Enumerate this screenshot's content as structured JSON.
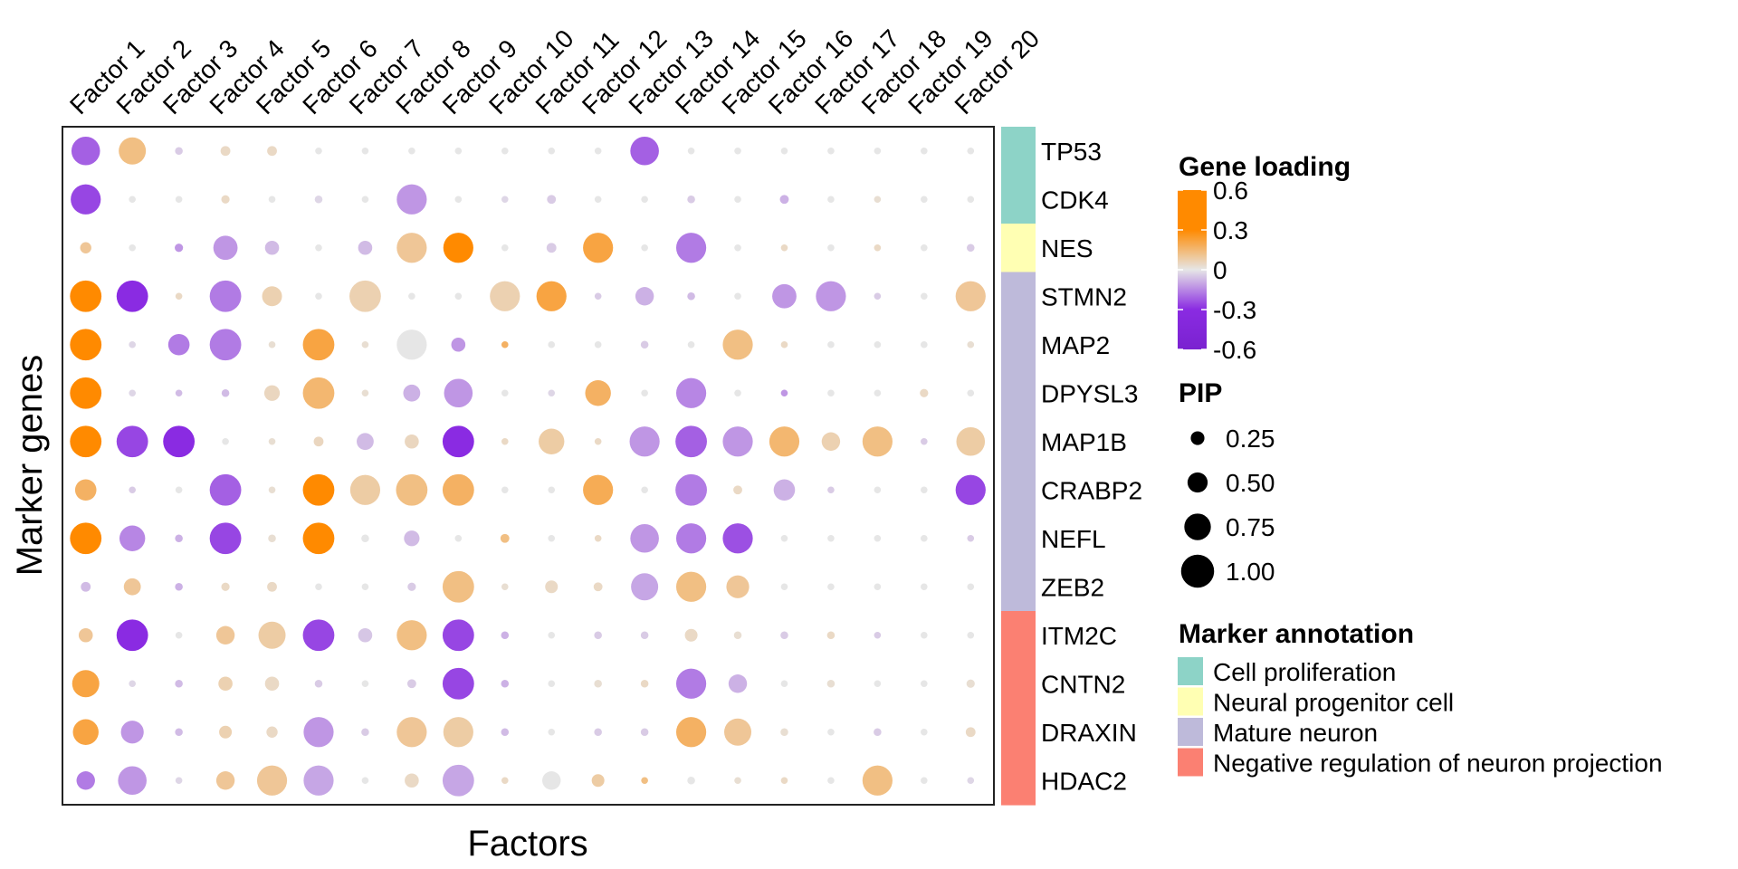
{
  "chart_data": {
    "type": "scatter",
    "subtype": "dot-heatmap",
    "xlabel": "Factors",
    "ylabel": "Marker genes",
    "x_categories": [
      "Factor 1",
      "Factor 2",
      "Factor 3",
      "Factor 4",
      "Factor 5",
      "Factor 6",
      "Factor 7",
      "Factor 8",
      "Factor 9",
      "Factor 10",
      "Factor 11",
      "Factor 12",
      "Factor 13",
      "Factor 14",
      "Factor 15",
      "Factor 16",
      "Factor 17",
      "Factor 18",
      "Factor 19",
      "Factor 20"
    ],
    "y_categories": [
      "TP53",
      "CDK4",
      "NES",
      "STMN2",
      "MAP2",
      "DPYSL3",
      "MAP1B",
      "CRABP2",
      "NEFL",
      "ZEB2",
      "ITM2C",
      "CNTN2",
      "DRAXIN",
      "HDAC2"
    ],
    "annotation": {
      "TP53": "Cell proliferation",
      "CDK4": "Cell proliferation",
      "NES": "Neural progenitor cell",
      "STMN2": "Mature neuron",
      "MAP2": "Mature neuron",
      "DPYSL3": "Mature neuron",
      "MAP1B": "Mature neuron",
      "CRABP2": "Mature neuron",
      "NEFL": "Mature neuron",
      "ZEB2": "Mature neuron",
      "ITM2C": "Negative regulation of neuron projection",
      "CNTN2": "Negative regulation of neuron projection",
      "DRAXIN": "Negative regulation of neuron projection",
      "HDAC2": "Negative regulation of neuron projection"
    },
    "loading": [
      [
        -0.25,
        0.15,
        -0.05,
        0.05,
        0.05,
        0.0,
        0.0,
        0.0,
        0.0,
        0.0,
        0.0,
        0.0,
        -0.25,
        0.0,
        0.0,
        0.0,
        0.0,
        0.0,
        0.0,
        0.0
      ],
      [
        -0.3,
        0.0,
        0.0,
        0.05,
        0.0,
        -0.03,
        0.0,
        -0.15,
        0.0,
        -0.03,
        -0.05,
        0.0,
        0.0,
        -0.05,
        0.0,
        -0.1,
        0.0,
        0.03,
        0.0,
        0.0
      ],
      [
        0.12,
        0.0,
        -0.15,
        -0.15,
        -0.08,
        0.0,
        -0.08,
        0.12,
        0.35,
        0.0,
        -0.05,
        0.25,
        0.0,
        -0.2,
        0.0,
        0.05,
        0.0,
        0.05,
        0.0,
        -0.05
      ],
      [
        0.55,
        -0.55,
        0.05,
        -0.2,
        0.08,
        0.0,
        0.08,
        0.0,
        0.0,
        0.08,
        0.25,
        -0.05,
        -0.1,
        -0.08,
        0.0,
        -0.15,
        -0.15,
        -0.05,
        0.0,
        0.12
      ],
      [
        0.55,
        -0.03,
        -0.2,
        -0.2,
        0.03,
        0.25,
        0.03,
        0.0,
        -0.15,
        0.2,
        0.0,
        0.0,
        -0.05,
        0.0,
        0.15,
        0.05,
        0.0,
        0.0,
        0.0,
        0.03
      ],
      [
        0.35,
        -0.03,
        -0.08,
        -0.08,
        0.06,
        0.18,
        0.03,
        -0.1,
        -0.15,
        0.0,
        -0.03,
        0.2,
        0.0,
        -0.18,
        0.0,
        -0.15,
        0.0,
        0.0,
        0.05,
        0.0
      ],
      [
        0.55,
        -0.3,
        -0.35,
        0.0,
        0.03,
        0.06,
        -0.08,
        0.06,
        -0.35,
        0.05,
        0.1,
        0.05,
        -0.15,
        -0.25,
        -0.15,
        0.18,
        0.08,
        0.15,
        -0.05,
        0.1
      ],
      [
        0.2,
        -0.05,
        0.0,
        -0.25,
        0.03,
        0.4,
        0.1,
        0.15,
        0.2,
        0.0,
        0.0,
        0.22,
        0.0,
        -0.2,
        0.05,
        -0.1,
        -0.05,
        0.0,
        0.0,
        -0.3
      ],
      [
        0.55,
        -0.18,
        -0.1,
        -0.3,
        0.03,
        0.55,
        0.0,
        -0.08,
        0.0,
        0.15,
        0.0,
        0.05,
        -0.15,
        -0.2,
        -0.28,
        0.0,
        0.0,
        0.0,
        0.0,
        -0.05
      ],
      [
        -0.08,
        0.12,
        -0.1,
        0.05,
        0.05,
        0.0,
        0.0,
        -0.05,
        0.15,
        0.03,
        0.05,
        0.05,
        -0.12,
        0.15,
        0.12,
        0.0,
        0.0,
        0.0,
        0.0,
        0.0
      ],
      [
        0.12,
        -0.5,
        0.0,
        0.12,
        0.1,
        -0.3,
        -0.06,
        0.15,
        -0.3,
        -0.1,
        0.0,
        -0.05,
        -0.05,
        0.05,
        0.03,
        -0.05,
        0.05,
        -0.05,
        0.0,
        0.0
      ],
      [
        0.25,
        -0.03,
        -0.08,
        0.08,
        0.05,
        -0.05,
        0.0,
        -0.05,
        -0.3,
        -0.1,
        0.0,
        0.03,
        0.05,
        -0.2,
        -0.1,
        0.0,
        0.03,
        0.0,
        0.0,
        0.03
      ],
      [
        0.25,
        -0.15,
        -0.08,
        0.08,
        0.05,
        -0.15,
        -0.05,
        0.12,
        0.1,
        -0.08,
        0.0,
        -0.05,
        -0.05,
        0.2,
        0.12,
        0.03,
        0.0,
        -0.05,
        0.0,
        0.05
      ],
      [
        -0.2,
        -0.15,
        -0.03,
        0.12,
        0.12,
        -0.12,
        0.0,
        0.05,
        -0.12,
        0.05,
        0.0,
        0.1,
        0.15,
        0.0,
        0.03,
        0.05,
        0.0,
        0.15,
        0.0,
        -0.03
      ]
    ],
    "pip": [
      [
        0.8,
        0.75,
        0.08,
        0.15,
        0.15,
        0.05,
        0.05,
        0.05,
        0.05,
        0.05,
        0.05,
        0.05,
        0.8,
        0.05,
        0.05,
        0.05,
        0.05,
        0.05,
        0.05,
        0.05
      ],
      [
        0.85,
        0.05,
        0.05,
        0.1,
        0.05,
        0.08,
        0.05,
        0.85,
        0.05,
        0.05,
        0.12,
        0.05,
        0.05,
        0.08,
        0.05,
        0.12,
        0.05,
        0.05,
        0.05,
        0.05
      ],
      [
        0.2,
        0.05,
        0.1,
        0.65,
        0.3,
        0.05,
        0.3,
        0.85,
        0.85,
        0.05,
        0.15,
        0.85,
        0.05,
        0.85,
        0.05,
        0.05,
        0.05,
        0.05,
        0.05,
        0.08
      ],
      [
        0.9,
        0.9,
        0.05,
        0.9,
        0.5,
        0.05,
        0.9,
        0.05,
        0.05,
        0.85,
        0.85,
        0.05,
        0.45,
        0.08,
        0.05,
        0.65,
        0.85,
        0.05,
        0.05,
        0.85
      ],
      [
        0.9,
        0.05,
        0.55,
        0.9,
        0.05,
        0.9,
        0.05,
        0.85,
        0.3,
        0.05,
        0.05,
        0.05,
        0.08,
        0.05,
        0.85,
        0.05,
        0.05,
        0.05,
        0.05,
        0.05
      ],
      [
        0.9,
        0.05,
        0.05,
        0.08,
        0.35,
        0.9,
        0.05,
        0.4,
        0.8,
        0.05,
        0.05,
        0.7,
        0.05,
        0.85,
        0.05,
        0.05,
        0.05,
        0.05,
        0.1,
        0.05
      ],
      [
        0.9,
        0.9,
        0.9,
        0.05,
        0.05,
        0.15,
        0.4,
        0.3,
        0.9,
        0.05,
        0.7,
        0.05,
        0.85,
        0.9,
        0.85,
        0.85,
        0.45,
        0.85,
        0.05,
        0.8
      ],
      [
        0.55,
        0.05,
        0.05,
        0.9,
        0.05,
        0.9,
        0.85,
        0.9,
        0.9,
        0.05,
        0.05,
        0.85,
        0.05,
        0.9,
        0.12,
        0.55,
        0.05,
        0.05,
        0.05,
        0.85
      ],
      [
        0.9,
        0.7,
        0.08,
        0.9,
        0.08,
        0.9,
        0.08,
        0.35,
        0.05,
        0.12,
        0.05,
        0.05,
        0.8,
        0.85,
        0.85,
        0.05,
        0.05,
        0.05,
        0.05,
        0.05
      ],
      [
        0.15,
        0.4,
        0.08,
        0.1,
        0.15,
        0.05,
        0.05,
        0.1,
        0.9,
        0.05,
        0.25,
        0.12,
        0.75,
        0.85,
        0.6,
        0.05,
        0.05,
        0.05,
        0.05,
        0.05
      ],
      [
        0.3,
        0.9,
        0.05,
        0.45,
        0.75,
        0.9,
        0.3,
        0.85,
        0.9,
        0.08,
        0.05,
        0.08,
        0.08,
        0.25,
        0.08,
        0.08,
        0.08,
        0.05,
        0.05,
        0.05
      ],
      [
        0.75,
        0.05,
        0.08,
        0.3,
        0.3,
        0.08,
        0.05,
        0.12,
        0.9,
        0.08,
        0.05,
        0.08,
        0.08,
        0.85,
        0.45,
        0.05,
        0.08,
        0.05,
        0.05,
        0.1
      ],
      [
        0.7,
        0.6,
        0.08,
        0.25,
        0.2,
        0.85,
        0.08,
        0.85,
        0.85,
        0.08,
        0.05,
        0.08,
        0.08,
        0.85,
        0.75,
        0.08,
        0.05,
        0.08,
        0.05,
        0.15
      ],
      [
        0.45,
        0.8,
        0.05,
        0.45,
        0.85,
        0.85,
        0.05,
        0.3,
        0.9,
        0.05,
        0.45,
        0.25,
        0.05,
        0.08,
        0.05,
        0.05,
        0.05,
        0.85,
        0.05,
        0.05
      ]
    ],
    "color_scale": {
      "title": "Gene loading",
      "ticks": [
        "0.6",
        "0.3",
        "0",
        "-0.3",
        "-0.6"
      ],
      "tick_values": [
        0.6,
        0.3,
        0,
        -0.3,
        -0.6
      ],
      "range": [
        -0.6,
        0.6
      ],
      "high_color": "#ff8a00",
      "mid_color": "#e6e6e6",
      "low_color": "#8a2be2"
    },
    "size_legend": {
      "title": "PIP",
      "labels": [
        "0.25",
        "0.50",
        "0.75",
        "1.00"
      ],
      "values": [
        0.25,
        0.5,
        0.75,
        1.0
      ]
    },
    "annotation_legend": {
      "title": "Marker annotation",
      "entries": [
        {
          "label": "Cell proliferation",
          "color": "#8dd3c7"
        },
        {
          "label": "Neural progenitor cell",
          "color": "#ffffb3"
        },
        {
          "label": "Mature neuron",
          "color": "#bebada"
        },
        {
          "label": "Negative regulation of neuron projection",
          "color": "#fb8072"
        }
      ]
    },
    "grid": false
  }
}
